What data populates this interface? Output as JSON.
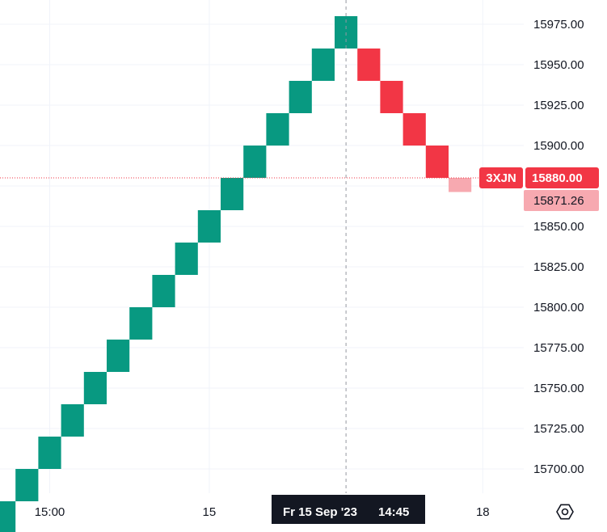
{
  "chart_data": {
    "type": "renko",
    "brick_size": 20,
    "y_ticks": [
      15700,
      15725,
      15750,
      15775,
      15800,
      15825,
      15850,
      15875,
      15900,
      15925,
      15950,
      15975
    ],
    "y_tick_labels": [
      "15700.00",
      "15725.00",
      "15750.00",
      "15775.00",
      "15800.00",
      "15825.00",
      "15850.00",
      "15875.00",
      "15900.00",
      "15925.00",
      "15950.00",
      "15975.00"
    ],
    "x_tick_labels": [
      {
        "label": "15:00",
        "brick_index": 2
      },
      {
        "label": "15",
        "brick_index": 9
      },
      {
        "label": "18",
        "brick_index": 21
      }
    ],
    "bricks": [
      {
        "low": 15660,
        "high": 15680,
        "dir": "up"
      },
      {
        "low": 15680,
        "high": 15700,
        "dir": "up"
      },
      {
        "low": 15700,
        "high": 15720,
        "dir": "up"
      },
      {
        "low": 15720,
        "high": 15740,
        "dir": "up"
      },
      {
        "low": 15740,
        "high": 15760,
        "dir": "up"
      },
      {
        "low": 15760,
        "high": 15780,
        "dir": "up"
      },
      {
        "low": 15780,
        "high": 15800,
        "dir": "up"
      },
      {
        "low": 15800,
        "high": 15820,
        "dir": "up"
      },
      {
        "low": 15820,
        "high": 15840,
        "dir": "up"
      },
      {
        "low": 15840,
        "high": 15860,
        "dir": "up"
      },
      {
        "low": 15860,
        "high": 15880,
        "dir": "up"
      },
      {
        "low": 15880,
        "high": 15900,
        "dir": "up"
      },
      {
        "low": 15900,
        "high": 15920,
        "dir": "up"
      },
      {
        "low": 15920,
        "high": 15940,
        "dir": "up"
      },
      {
        "low": 15940,
        "high": 15960,
        "dir": "up"
      },
      {
        "low": 15960,
        "high": 15980,
        "dir": "up"
      },
      {
        "low": 15940,
        "high": 15960,
        "dir": "down"
      },
      {
        "low": 15920,
        "high": 15940,
        "dir": "down"
      },
      {
        "low": 15900,
        "high": 15920,
        "dir": "down"
      },
      {
        "low": 15880,
        "high": 15900,
        "dir": "down"
      },
      {
        "low": 15871.26,
        "high": 15880,
        "dir": "down-pending"
      }
    ],
    "last_price": 15880.0,
    "last_price_label": "15880.00",
    "symbol_label": "3XJN",
    "current_price": 15871.26,
    "current_price_label": "15871.26",
    "crosshair": {
      "date_label": "Fr 15 Sep '23",
      "time_label": "14:45",
      "brick_index": 15
    },
    "colors": {
      "up": "#089981",
      "down": "#f23645",
      "pending": "#f7a9b0",
      "badge": "#f23645",
      "badge_light": "#f7a9b0",
      "crosshair_label": "#131722",
      "grid": "#f0f3fa"
    },
    "grid": true
  },
  "settings_icon": "gear-hexagon-icon"
}
